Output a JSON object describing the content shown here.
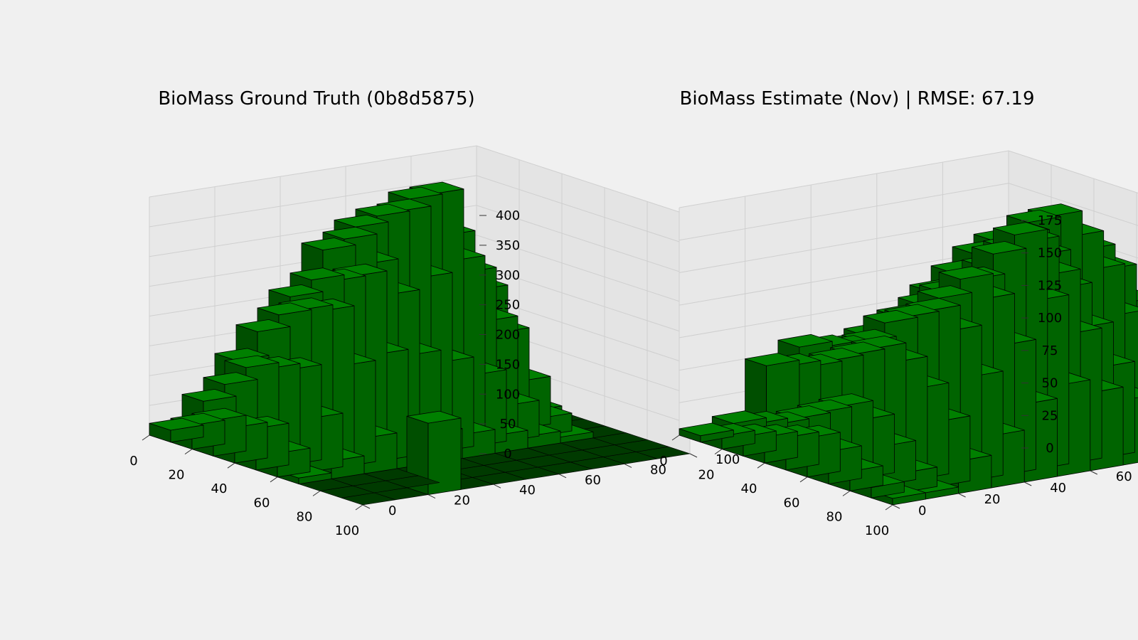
{
  "chart_data": [
    {
      "type": "bar3d",
      "title": "BioMass Ground Truth (0b8d5875)",
      "xlabel": "",
      "ylabel": "",
      "zlabel": "",
      "xlim": [
        0,
        100
      ],
      "ylim": [
        0,
        100
      ],
      "zlim": [
        0,
        400
      ],
      "x_ticks": [
        "0",
        "20",
        "40",
        "60",
        "80",
        "100"
      ],
      "y_ticks": [
        "0",
        "20",
        "40",
        "60",
        "80",
        "100"
      ],
      "z_ticks": [
        "0",
        "50",
        "100",
        "150",
        "200",
        "250",
        "300",
        "350",
        "400"
      ],
      "grid": true,
      "bar_color": "#008000",
      "edge_color": "#000000",
      "pane_color": "#e8e8e8",
      "x": [
        0,
        10,
        20,
        30,
        40,
        50,
        60,
        70,
        80,
        90
      ],
      "y": [
        0,
        10,
        20,
        30,
        40,
        50,
        60,
        70,
        80,
        90
      ],
      "z": [
        [
          60,
          40,
          20,
          10,
          0,
          0,
          0,
          0,
          0,
          0
        ],
        [
          150,
          180,
          210,
          150,
          80,
          30,
          10,
          0,
          0,
          0
        ],
        [
          200,
          250,
          310,
          260,
          190,
          60,
          20,
          0,
          0,
          0
        ],
        [
          240,
          320,
          380,
          400,
          300,
          120,
          30,
          0,
          0,
          0
        ],
        [
          220,
          330,
          360,
          380,
          280,
          150,
          40,
          0,
          0,
          0
        ],
        [
          200,
          300,
          330,
          300,
          260,
          170,
          50,
          0,
          0,
          0
        ],
        [
          160,
          230,
          270,
          280,
          300,
          180,
          60,
          0,
          0,
          0
        ],
        [
          120,
          180,
          220,
          240,
          250,
          170,
          60,
          0,
          0,
          120
        ],
        [
          60,
          100,
          140,
          150,
          160,
          90,
          30,
          0,
          0,
          0
        ],
        [
          20,
          40,
          60,
          60,
          70,
          40,
          10,
          0,
          0,
          0
        ]
      ]
    },
    {
      "type": "bar3d",
      "title": "BioMass Estimate (Nov) | RMSE: 67.19",
      "xlabel": "",
      "ylabel": "",
      "zlabel": "",
      "xlim": [
        0,
        100
      ],
      "ylim": [
        0,
        100
      ],
      "zlim": [
        0,
        175
      ],
      "x_ticks": [
        "0",
        "20",
        "40",
        "60",
        "80",
        "100"
      ],
      "y_ticks": [
        "0",
        "20",
        "40",
        "60",
        "80",
        "100"
      ],
      "z_ticks": [
        "0",
        "25",
        "50",
        "75",
        "100",
        "125",
        "150",
        "175"
      ],
      "grid": true,
      "bar_color": "#008000",
      "edge_color": "#000000",
      "pane_color": "#e8e8e8",
      "x": [
        0,
        10,
        20,
        30,
        40,
        50,
        60,
        70,
        80,
        90
      ],
      "y": [
        0,
        10,
        20,
        30,
        40,
        50,
        60,
        70,
        80,
        90
      ],
      "z": [
        [
          80,
          95,
          110,
          125,
          130,
          120,
          100,
          80,
          60,
          40
        ],
        [
          90,
          110,
          130,
          150,
          160,
          150,
          130,
          100,
          70,
          50
        ],
        [
          85,
          105,
          125,
          140,
          150,
          140,
          120,
          95,
          70,
          50
        ],
        [
          70,
          85,
          100,
          115,
          130,
          150,
          160,
          140,
          100,
          60
        ],
        [
          60,
          70,
          80,
          95,
          110,
          130,
          155,
          175,
          130,
          70
        ],
        [
          55,
          60,
          70,
          80,
          95,
          120,
          140,
          130,
          100,
          60
        ],
        [
          60,
          65,
          70,
          80,
          100,
          110,
          120,
          110,
          80,
          40
        ],
        [
          50,
          55,
          60,
          70,
          80,
          90,
          85,
          70,
          50,
          25
        ],
        [
          10,
          15,
          20,
          30,
          40,
          50,
          45,
          30,
          15,
          5
        ],
        [
          5,
          10,
          15,
          20,
          25,
          30,
          25,
          15,
          8,
          5
        ]
      ]
    }
  ]
}
